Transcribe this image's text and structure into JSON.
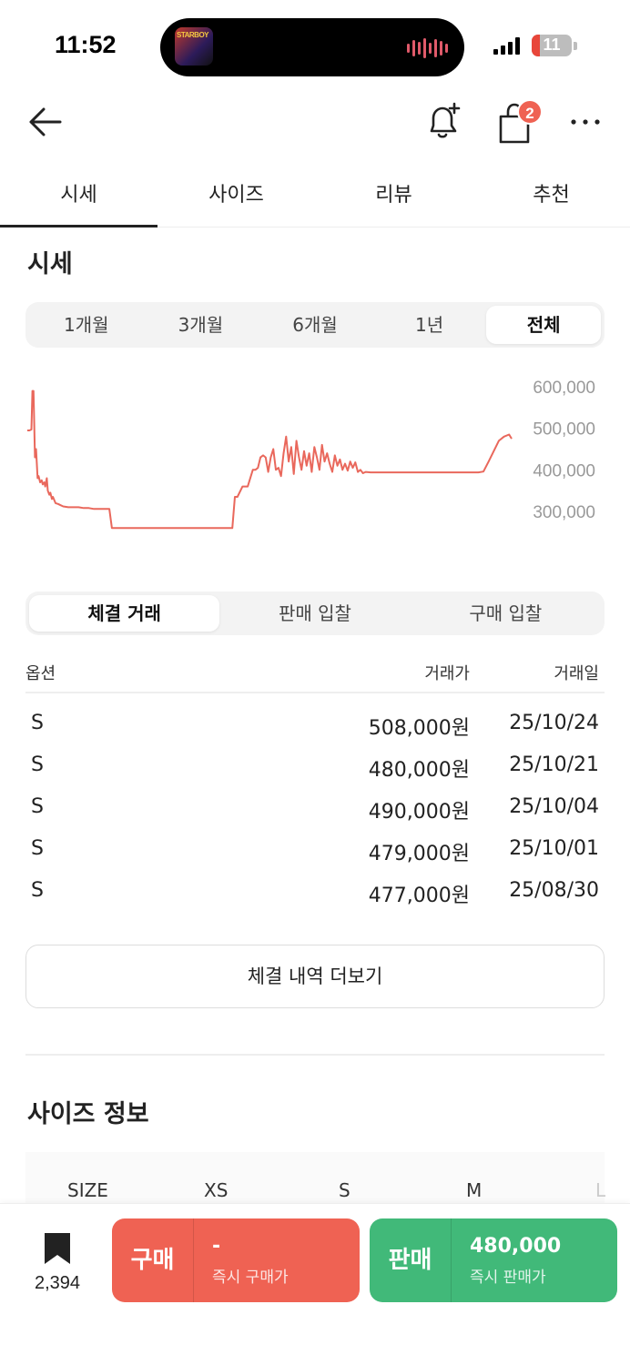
{
  "status_bar": {
    "time": "11:52",
    "now_playing_art_text": "STARBOY",
    "battery": "11",
    "colors": {
      "battery_low": "#e8463a",
      "wave": "#e05a6a"
    }
  },
  "nav": {
    "cart_badge": "2"
  },
  "tabs": [
    {
      "label": "시세"
    },
    {
      "label": "사이즈"
    },
    {
      "label": "리뷰"
    },
    {
      "label": "추천"
    }
  ],
  "price_section": {
    "title": "시세",
    "periods": [
      "1개월",
      "3개월",
      "6개월",
      "1년",
      "전체"
    ],
    "selected_period": "전체"
  },
  "chart_data": {
    "type": "line",
    "title": "",
    "xlabel": "",
    "ylabel": "",
    "y_ticks": [
      "600,000",
      "500,000",
      "400,000",
      "300,000"
    ],
    "ylim": [
      240000,
      630000
    ],
    "grid": false,
    "series": [
      {
        "color": "#e9685c",
        "x": [
          0,
          0.4,
          0.8,
          1.0,
          1.2,
          1.5,
          1.7,
          2.0,
          2.2,
          2.5,
          2.8,
          3.0,
          3.3,
          3.5,
          3.8,
          4.0,
          4.3,
          4.5,
          4.8,
          5.0,
          5.5,
          6.0,
          6.5,
          7.0,
          8.0,
          9.0,
          10.0,
          11.0,
          12.0,
          13.0,
          14.0,
          15.0,
          16.0,
          16.5,
          17.0,
          17.5,
          20.0,
          25.0,
          30.0,
          35.0,
          38.0,
          40.0,
          40.5,
          41.0,
          42.0,
          43.0,
          44.0,
          44.5,
          45.0,
          45.5,
          46.0,
          46.5,
          47.0,
          47.5,
          48.0,
          48.5,
          49.0,
          49.5,
          50.0,
          50.5,
          51.0,
          51.5,
          52.0,
          52.5,
          53.0,
          53.5,
          54.0,
          54.5,
          55.0,
          55.5,
          56.0,
          56.5,
          57.0,
          57.5,
          58.0,
          58.5,
          59.0,
          59.5,
          60.0,
          60.5,
          61.0,
          61.5,
          62.0,
          62.5,
          63.0,
          63.5,
          64.0,
          64.5,
          65.0,
          65.5,
          66.0,
          67.0,
          70.0,
          75.0,
          80.0,
          85.0,
          88.0,
          89.0,
          90.0,
          91.0,
          92.0,
          93.0,
          94.0,
          94.5
        ],
        "values": [
          495000,
          495000,
          497000,
          590000,
          590000,
          430000,
          450000,
          380000,
          385000,
          370000,
          375000,
          365000,
          370000,
          360000,
          380000,
          350000,
          340000,
          345000,
          330000,
          335000,
          320000,
          318000,
          315000,
          312000,
          310000,
          310000,
          310000,
          308000,
          308000,
          306000,
          306000,
          306000,
          306000,
          260000,
          260000,
          260000,
          260000,
          260000,
          260000,
          260000,
          260000,
          260000,
          335000,
          335000,
          360000,
          360000,
          400000,
          400000,
          405000,
          430000,
          435000,
          430000,
          395000,
          430000,
          450000,
          400000,
          405000,
          385000,
          440000,
          480000,
          420000,
          455000,
          390000,
          470000,
          430000,
          400000,
          445000,
          410000,
          440000,
          395000,
          455000,
          430000,
          400000,
          460000,
          420000,
          440000,
          415000,
          395000,
          435000,
          410000,
          425000,
          400000,
          415000,
          398000,
          420000,
          405000,
          418000,
          395000,
          400000,
          392000,
          395000,
          394000,
          394000,
          394000,
          394000,
          394000,
          394000,
          396000,
          420000,
          445000,
          470000,
          480000,
          485000,
          475000
        ]
      }
    ]
  },
  "trade_tabs": [
    "체결 거래",
    "판매 입찰",
    "구매 입찰"
  ],
  "selected_trade_tab": "체결 거래",
  "trade_table": {
    "headers": {
      "option": "옵션",
      "price": "거래가",
      "date": "거래일"
    },
    "rows": [
      {
        "option": "S",
        "price": "508,000원",
        "date": "25/10/24"
      },
      {
        "option": "S",
        "price": "480,000원",
        "date": "25/10/21"
      },
      {
        "option": "S",
        "price": "490,000원",
        "date": "25/10/04"
      },
      {
        "option": "S",
        "price": "479,000원",
        "date": "25/10/01"
      },
      {
        "option": "S",
        "price": "477,000원",
        "date": "25/08/30"
      }
    ]
  },
  "more_button": "체결 내역 더보기",
  "size_info": {
    "title": "사이즈 정보",
    "columns": [
      "SIZE",
      "XS",
      "S",
      "M",
      "L"
    ]
  },
  "bottom_bar": {
    "wish_count": "2,394",
    "buy": {
      "label": "구매",
      "price": "-",
      "sub": "즉시 구매가",
      "color": "#ef6253"
    },
    "sell": {
      "label": "판매",
      "price": "480,000",
      "sub": "즉시 판매가",
      "color": "#41b979"
    }
  }
}
